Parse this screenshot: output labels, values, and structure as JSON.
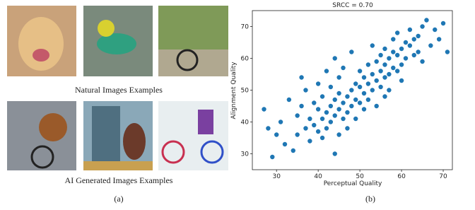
{
  "panel_a": {
    "rows": [
      {
        "caption": "Natural Images Examples"
      },
      {
        "caption": "AI Generated Images Examples"
      }
    ],
    "label": "(a)"
  },
  "panel_b": {
    "label": "(b)"
  },
  "chart_data": {
    "type": "scatter",
    "title": "SRCC = 0.70",
    "x_label": "Perceptual Quality",
    "y_label": "Alignment Quality",
    "color": "#1f77b4",
    "xlim": [
      24.2,
      72.2
    ],
    "ylim": [
      25,
      75
    ],
    "xticks": [
      30,
      40,
      50,
      60,
      70
    ],
    "yticks": [
      30,
      40,
      50,
      60,
      70
    ],
    "x": [
      27,
      28,
      29,
      30,
      31,
      32,
      33,
      34,
      35,
      35,
      36,
      37,
      37,
      38,
      38,
      39,
      39,
      40,
      40,
      40,
      41,
      41,
      41,
      42,
      42,
      42,
      43,
      43,
      43,
      44,
      44,
      44,
      45,
      45,
      45,
      45,
      46,
      46,
      46,
      47,
      47,
      47,
      48,
      48,
      48,
      49,
      49,
      49,
      50,
      50,
      50,
      51,
      51,
      51,
      52,
      52,
      52,
      53,
      53,
      53,
      54,
      54,
      54,
      55,
      55,
      55,
      56,
      56,
      56,
      57,
      57,
      57,
      58,
      58,
      58,
      59,
      59,
      59,
      60,
      60,
      60,
      61,
      61,
      62,
      62,
      63,
      63,
      64,
      64,
      65,
      65,
      66,
      67,
      68,
      69,
      70,
      71,
      36,
      44,
      56
    ],
    "y": [
      44,
      38,
      29,
      36,
      40,
      33,
      47,
      31,
      42,
      36,
      45,
      38,
      50,
      41,
      34,
      46,
      39,
      37,
      44,
      52,
      41,
      48,
      35,
      43,
      56,
      38,
      45,
      40,
      51,
      47,
      42,
      60,
      36,
      44,
      49,
      54,
      46,
      41,
      57,
      48,
      43,
      38,
      50,
      45,
      62,
      47,
      52,
      41,
      51,
      46,
      56,
      49,
      54,
      44,
      52,
      58,
      47,
      55,
      50,
      64,
      53,
      59,
      45,
      56,
      51,
      61,
      58,
      54,
      63,
      60,
      55,
      50,
      62,
      57,
      66,
      61,
      56,
      68,
      63,
      58,
      53,
      65,
      60,
      64,
      69,
      66,
      61,
      67,
      62,
      70,
      59,
      72,
      64,
      69,
      66,
      71,
      62,
      54,
      30,
      48
    ]
  }
}
